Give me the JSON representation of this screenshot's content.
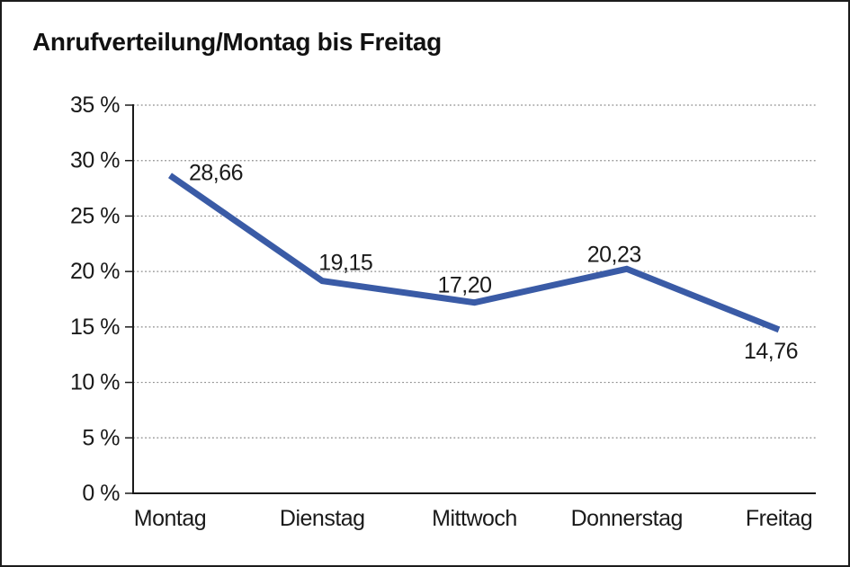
{
  "chart_data": {
    "type": "line",
    "title": "Anrufverteilung/Montag bis Freitag",
    "categories": [
      "Montag",
      "Dienstag",
      "Mittwoch",
      "Donnerstag",
      "Freitag"
    ],
    "series": [
      {
        "name": "Anrufverteilung",
        "values": [
          28.66,
          19.15,
          17.2,
          20.23,
          14.76
        ],
        "value_labels": [
          "28,66",
          "19,15",
          "17,20",
          "20,23",
          "14,76"
        ]
      }
    ],
    "y_ticks": [
      {
        "value": 0,
        "label": "0 %"
      },
      {
        "value": 5,
        "label": "5 %"
      },
      {
        "value": 10,
        "label": "10 %"
      },
      {
        "value": 15,
        "label": "15 %"
      },
      {
        "value": 20,
        "label": "20 %"
      },
      {
        "value": 25,
        "label": "25 %"
      },
      {
        "value": 30,
        "label": "30 %"
      },
      {
        "value": 35,
        "label": "35 %"
      }
    ],
    "ylim": [
      0,
      35
    ],
    "xlabel": "",
    "ylabel": "",
    "grid": "horizontal-dotted",
    "legend": "none",
    "colors": {
      "line": "#3a5ba6",
      "axis": "#1a1a1a",
      "gridline": "#8c8c8c",
      "text": "#1a1a1a",
      "background": "#ffffff"
    }
  }
}
